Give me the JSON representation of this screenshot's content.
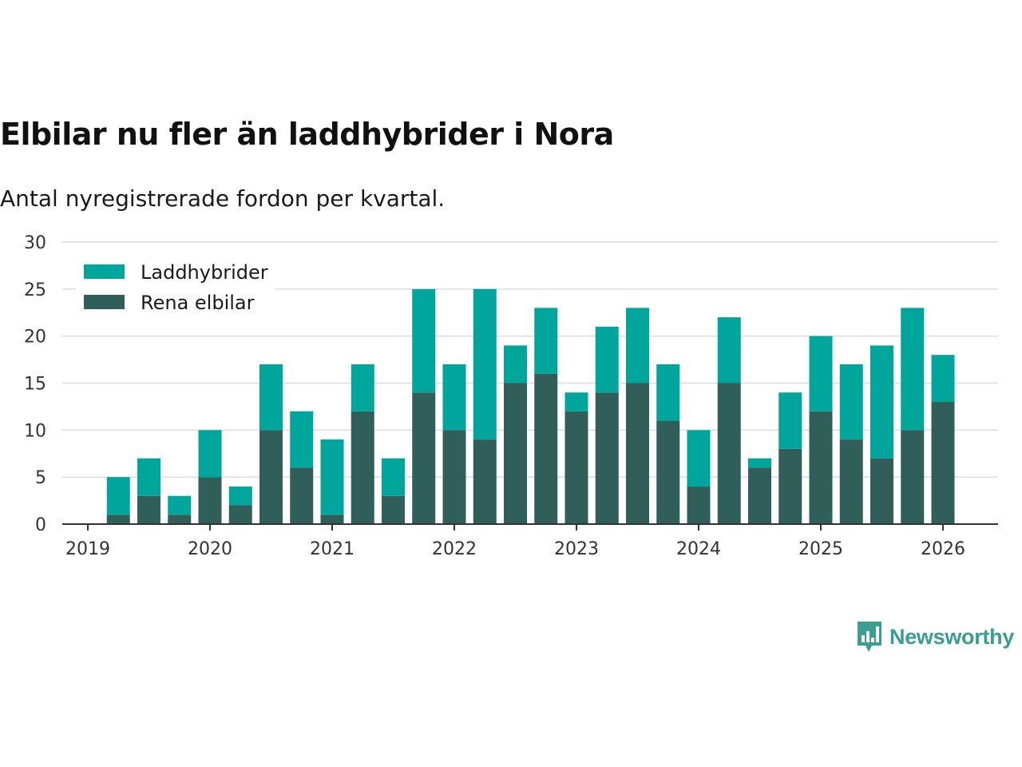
{
  "header": {
    "title": "Elbilar nu fler än laddhybrider i Nora",
    "subtitle": "Antal nyregistrerade fordon per kvartal."
  },
  "brand": {
    "name": "Newsworthy",
    "icon": "bar-chart-speech-bubble-icon",
    "color": "#3a9e91"
  },
  "chart_data": {
    "type": "bar",
    "stacked": true,
    "title": "Elbilar nu fler än laddhybrider i Nora",
    "subtitle": "Antal nyregistrerade fordon per kvartal.",
    "xlabel": "",
    "ylabel": "",
    "ylim": [
      0,
      30
    ],
    "yticks": [
      0,
      5,
      10,
      15,
      20,
      25,
      30
    ],
    "xlim": [
      2019,
      2026.45
    ],
    "xticks": [
      "2019",
      "2020",
      "2021",
      "2022",
      "2023",
      "2024",
      "2025",
      "2026"
    ],
    "grid": true,
    "legend_position": "top-left",
    "x": [
      2019.25,
      2019.5,
      2019.75,
      2020.0,
      2020.25,
      2020.5,
      2020.75,
      2021.0,
      2021.25,
      2021.5,
      2021.75,
      2022.0,
      2022.25,
      2022.5,
      2022.75,
      2023.0,
      2023.25,
      2023.5,
      2023.75,
      2024.0,
      2024.25,
      2024.5,
      2024.75,
      2025.0,
      2025.25,
      2025.5,
      2025.75,
      2026.0
    ],
    "series": [
      {
        "name": "Rena elbilar",
        "color": "#2f5f58",
        "values": [
          1,
          3,
          1,
          5,
          2,
          10,
          6,
          1,
          12,
          3,
          14,
          10,
          9,
          15,
          16,
          12,
          14,
          15,
          11,
          4,
          15,
          6,
          8,
          12,
          9,
          7,
          10,
          13
        ]
      },
      {
        "name": "Laddhybrider",
        "color": "#00a59b",
        "values": [
          4,
          4,
          2,
          5,
          2,
          7,
          6,
          8,
          5,
          4,
          11,
          7,
          16,
          4,
          7,
          2,
          7,
          8,
          6,
          6,
          7,
          1,
          6,
          8,
          8,
          12,
          13,
          5
        ]
      }
    ],
    "legend": [
      "Laddhybrider",
      "Rena elbilar"
    ]
  }
}
